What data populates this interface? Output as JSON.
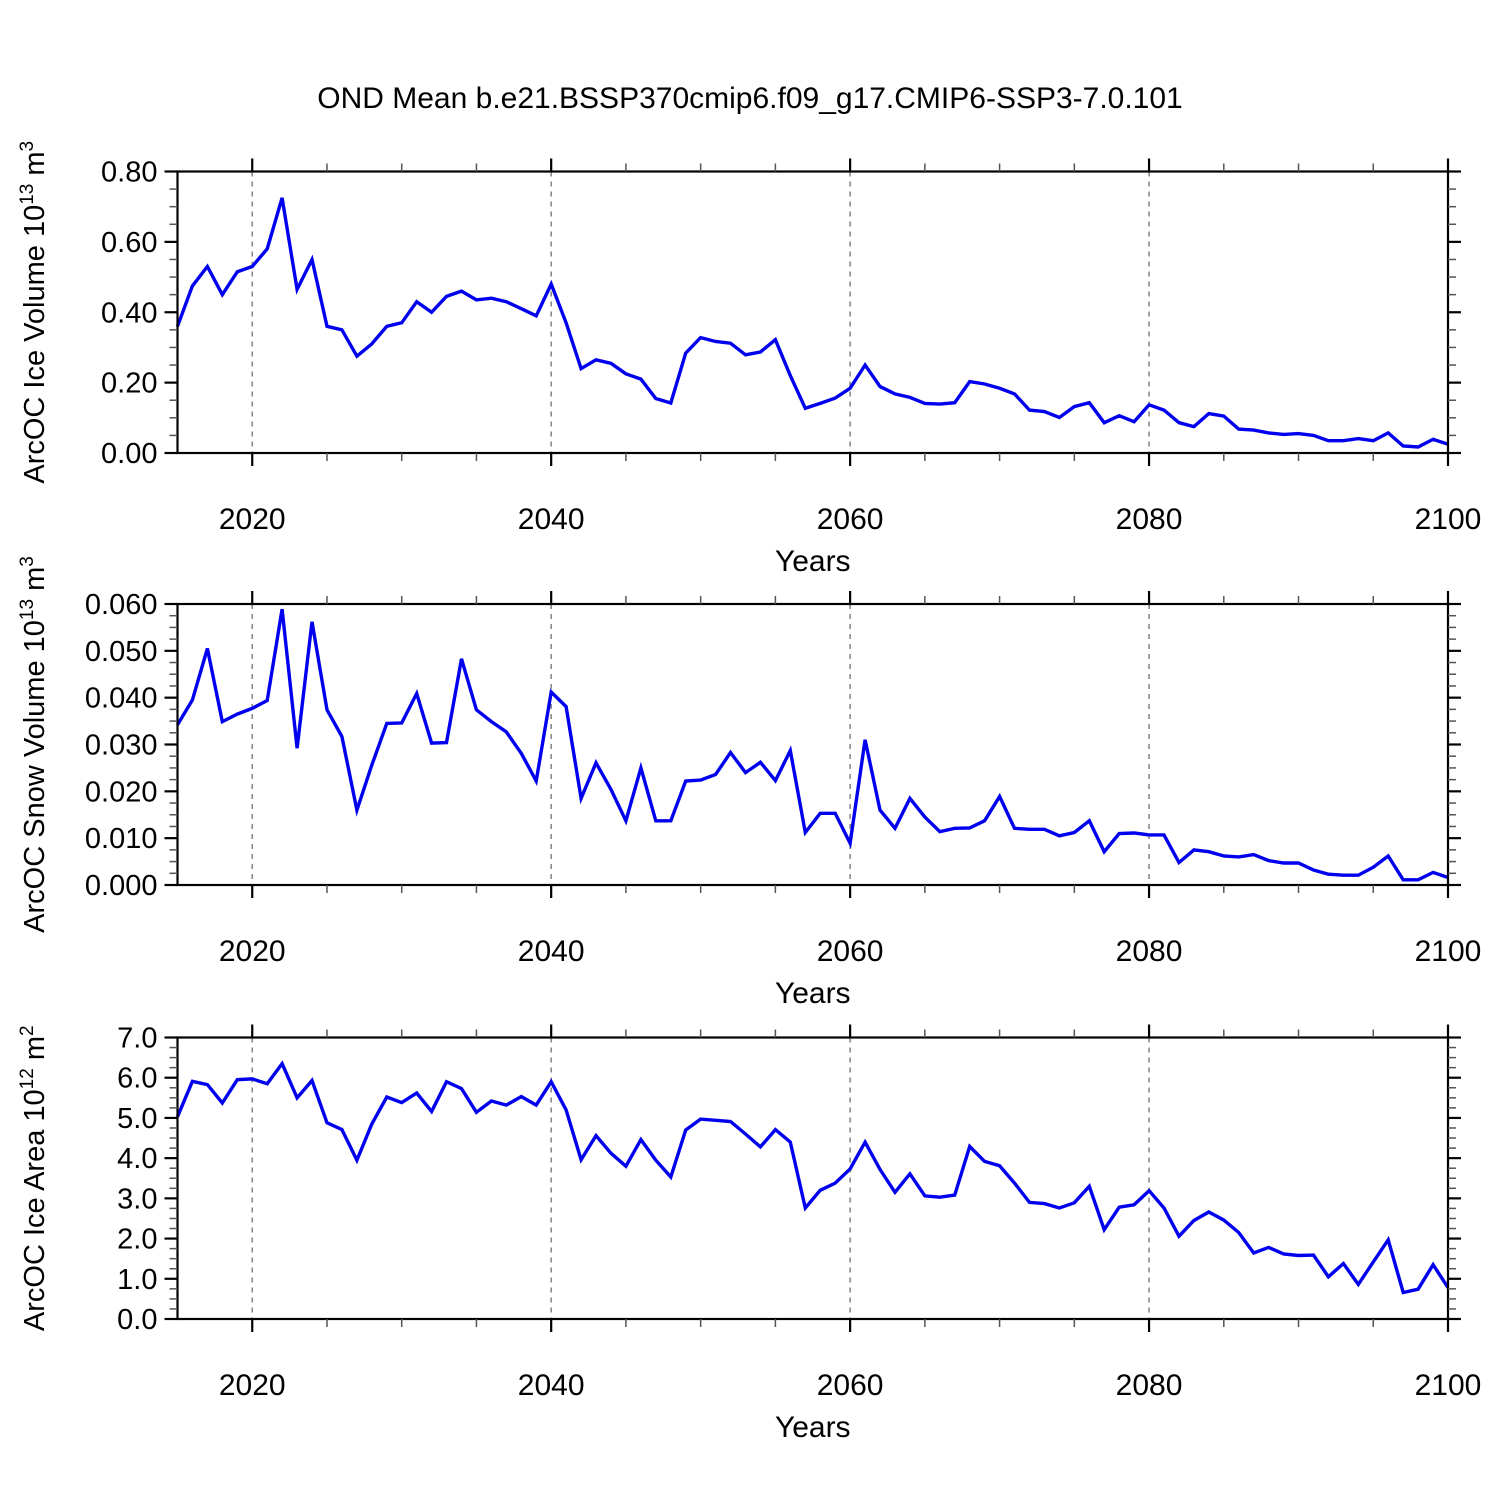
{
  "figure": {
    "title": "OND Mean b.e21.BSSP370cmip6.f09_g17.CMIP6-SSP3-7.0.101",
    "background": "#ffffff",
    "axis_color": "#000000",
    "grid_color": "#8a8a8a",
    "line_color": "#0000ee"
  },
  "chart_data": [
    {
      "type": "line",
      "name": "arcoc-ice-volume",
      "ylabel_text": "ArcOC Ice Volume 10^13 m^3",
      "ylabel_parts": [
        {
          "t": "ArcOC Ice Volume 10"
        },
        {
          "t": "13",
          "sup": true
        },
        {
          "t": " m"
        },
        {
          "t": "3",
          "sup": true
        }
      ],
      "xlabel": "Years",
      "xlim": [
        2015,
        2100
      ],
      "ylim": [
        0,
        0.8
      ],
      "x_major_ticks": [
        2020,
        2040,
        2060,
        2080,
        2100
      ],
      "x_tick_labels": [
        "2020",
        "2040",
        "2060",
        "2080",
        "2100"
      ],
      "x_minor_step": 5,
      "x_gridlines": [
        2020,
        2040,
        2060,
        2080
      ],
      "y_major_step": 0.2,
      "y_minor_step": 0.05,
      "y_tick_labels": [
        "0.00",
        "0.20",
        "0.40",
        "0.60",
        "0.80"
      ],
      "grid": true,
      "legend": "none",
      "x_start": 2015,
      "x_step": 1,
      "x_end": 2100,
      "values": [
        0.36,
        0.475,
        0.53,
        0.45,
        0.515,
        0.53,
        0.58,
        0.725,
        0.465,
        0.55,
        0.36,
        0.35,
        0.275,
        0.31,
        0.36,
        0.37,
        0.43,
        0.4,
        0.445,
        0.46,
        0.435,
        0.44,
        0.43,
        0.41,
        0.39,
        0.48,
        0.37,
        0.24,
        0.265,
        0.255,
        0.225,
        0.21,
        0.155,
        0.142,
        0.284,
        0.328,
        0.317,
        0.312,
        0.279,
        0.287,
        0.322,
        0.22,
        0.127,
        0.141,
        0.156,
        0.184,
        0.25,
        0.189,
        0.168,
        0.158,
        0.141,
        0.139,
        0.143,
        0.203,
        0.196,
        0.184,
        0.168,
        0.122,
        0.118,
        0.101,
        0.132,
        0.143,
        0.086,
        0.106,
        0.089,
        0.137,
        0.122,
        0.086,
        0.075,
        0.112,
        0.105,
        0.068,
        0.065,
        0.057,
        0.053,
        0.055,
        0.05,
        0.035,
        0.035,
        0.041,
        0.035,
        0.057,
        0.02,
        0.017,
        0.039,
        0.025
      ]
    },
    {
      "type": "line",
      "name": "arcoc-snow-volume",
      "ylabel_text": "ArcOC Snow Volume 10^13 m^3",
      "ylabel_parts": [
        {
          "t": "ArcOC Snow Volume 10"
        },
        {
          "t": "13",
          "sup": true
        },
        {
          "t": " m"
        },
        {
          "t": "3",
          "sup": true
        }
      ],
      "xlabel": "Years",
      "xlim": [
        2015,
        2100
      ],
      "ylim": [
        0,
        0.06
      ],
      "x_major_ticks": [
        2020,
        2040,
        2060,
        2080,
        2100
      ],
      "x_tick_labels": [
        "2020",
        "2040",
        "2060",
        "2080",
        "2100"
      ],
      "x_minor_step": 5,
      "x_gridlines": [
        2020,
        2040,
        2060,
        2080
      ],
      "y_major_step": 0.01,
      "y_minor_step": 0.0025,
      "y_tick_labels": [
        "0.000",
        "0.010",
        "0.020",
        "0.030",
        "0.040",
        "0.050",
        "0.060"
      ],
      "grid": true,
      "legend": "none",
      "x_start": 2015,
      "x_step": 1,
      "x_end": 2100,
      "values": [
        0.0342,
        0.0395,
        0.0505,
        0.0349,
        0.0365,
        0.0377,
        0.0394,
        0.0589,
        0.0292,
        0.0562,
        0.0374,
        0.0317,
        0.016,
        0.0256,
        0.0345,
        0.0346,
        0.0409,
        0.0303,
        0.0304,
        0.0483,
        0.0374,
        0.0349,
        0.0327,
        0.0281,
        0.0222,
        0.0412,
        0.0381,
        0.0185,
        0.0261,
        0.0204,
        0.0137,
        0.025,
        0.0137,
        0.0137,
        0.0222,
        0.0224,
        0.0236,
        0.0283,
        0.024,
        0.0262,
        0.0223,
        0.0287,
        0.0112,
        0.0153,
        0.0153,
        0.0089,
        0.031,
        0.016,
        0.0121,
        0.0185,
        0.0145,
        0.0114,
        0.0121,
        0.0122,
        0.0137,
        0.0189,
        0.0121,
        0.0119,
        0.0119,
        0.0105,
        0.0112,
        0.0137,
        0.0071,
        0.011,
        0.0111,
        0.0107,
        0.0107,
        0.0048,
        0.0075,
        0.0071,
        0.0062,
        0.006,
        0.0065,
        0.0052,
        0.0047,
        0.0047,
        0.0032,
        0.0023,
        0.0021,
        0.0021,
        0.0038,
        0.0062,
        0.0011,
        0.0011,
        0.0027,
        0.0016
      ]
    },
    {
      "type": "line",
      "name": "arcoc-ice-area",
      "ylabel_text": "ArcOC Ice Area 10^12 m^2",
      "ylabel_parts": [
        {
          "t": "ArcOC Ice Area 10"
        },
        {
          "t": "12",
          "sup": true
        },
        {
          "t": " m"
        },
        {
          "t": "2",
          "sup": true
        }
      ],
      "xlabel": "Years",
      "xlim": [
        2015,
        2100
      ],
      "ylim": [
        0,
        7
      ],
      "x_major_ticks": [
        2020,
        2040,
        2060,
        2080,
        2100
      ],
      "x_tick_labels": [
        "2020",
        "2040",
        "2060",
        "2080",
        "2100"
      ],
      "x_minor_step": 5,
      "x_gridlines": [
        2020,
        2040,
        2060,
        2080
      ],
      "y_major_step": 1.0,
      "y_minor_step": 0.25,
      "y_tick_labels": [
        "0.0",
        "1.0",
        "2.0",
        "3.0",
        "4.0",
        "5.0",
        "6.0",
        "7.0"
      ],
      "grid": true,
      "legend": "none",
      "x_start": 2015,
      "x_step": 1,
      "x_end": 2100,
      "values": [
        5.03,
        5.91,
        5.83,
        5.37,
        5.95,
        5.97,
        5.85,
        6.35,
        5.5,
        5.93,
        4.88,
        4.71,
        3.95,
        4.85,
        5.52,
        5.38,
        5.62,
        5.16,
        5.9,
        5.73,
        5.14,
        5.42,
        5.32,
        5.53,
        5.32,
        5.9,
        5.2,
        3.96,
        4.56,
        4.12,
        3.8,
        4.46,
        3.95,
        3.53,
        4.7,
        4.97,
        4.94,
        4.91,
        4.6,
        4.28,
        4.71,
        4.4,
        2.76,
        3.2,
        3.38,
        3.73,
        4.4,
        3.72,
        3.15,
        3.61,
        3.06,
        3.03,
        3.08,
        4.29,
        3.92,
        3.81,
        3.38,
        2.9,
        2.87,
        2.76,
        2.89,
        3.3,
        2.22,
        2.78,
        2.84,
        3.19,
        2.76,
        2.06,
        2.45,
        2.66,
        2.46,
        2.15,
        1.64,
        1.78,
        1.62,
        1.58,
        1.59,
        1.05,
        1.38,
        0.86,
        1.42,
        1.97,
        0.66,
        0.74,
        1.35,
        0.78
      ]
    }
  ]
}
